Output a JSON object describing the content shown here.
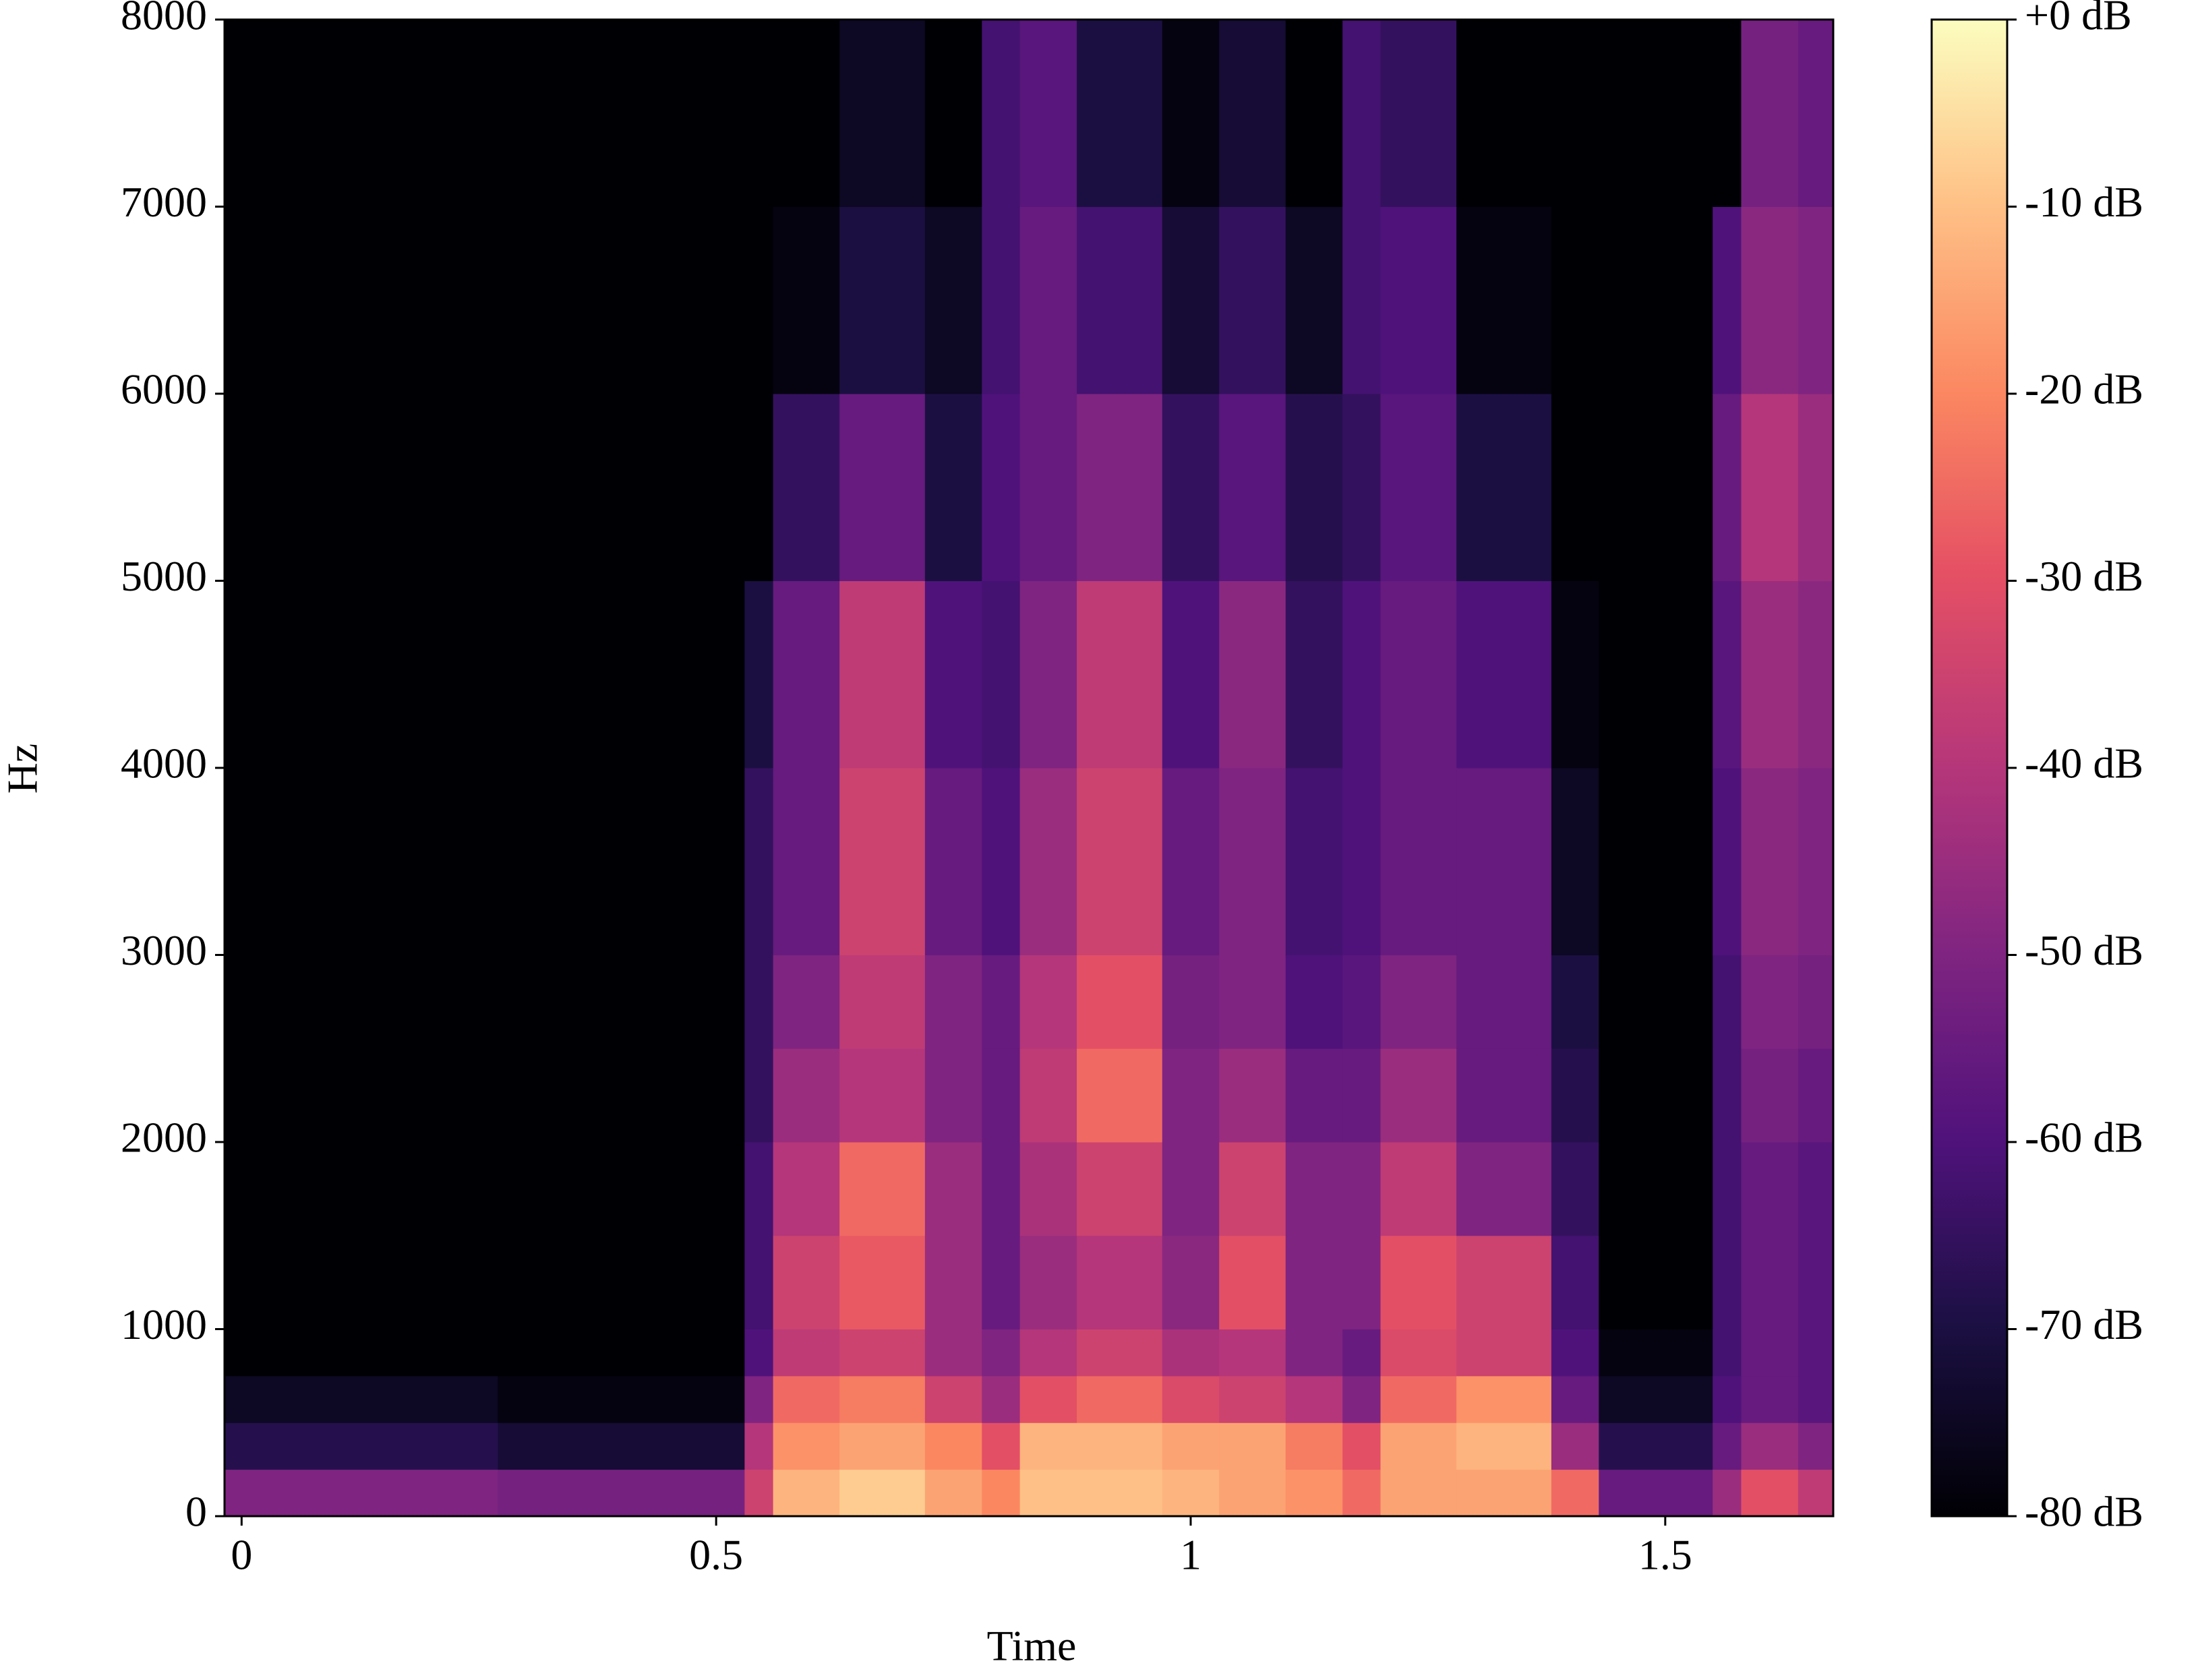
{
  "chart_data": {
    "type": "spectrogram",
    "xlabel": "Time",
    "ylabel": "Hz",
    "xlim": [
      -0.018,
      1.677
    ],
    "xticks": [
      0,
      0.5,
      1,
      1.5
    ],
    "ylim": [
      0,
      8000
    ],
    "yticks": [
      0,
      1000,
      2000,
      3000,
      4000,
      5000,
      6000,
      7000,
      8000
    ],
    "colormap": "magma",
    "clim": [
      -80,
      0
    ],
    "cticks": [
      {
        "value": 0,
        "label": "+0 dB"
      },
      {
        "value": -10,
        "label": "-10 dB"
      },
      {
        "value": -20,
        "label": "-20 dB"
      },
      {
        "value": -30,
        "label": "-30 dB"
      },
      {
        "value": -40,
        "label": "-40 dB"
      },
      {
        "value": -50,
        "label": "-50 dB"
      },
      {
        "value": -60,
        "label": "-60 dB"
      },
      {
        "value": -70,
        "label": "-70 dB"
      },
      {
        "value": -80,
        "label": "-80 dB"
      }
    ],
    "time_bins": [
      -0.018,
      0.27,
      0.53,
      0.56,
      0.63,
      0.72,
      0.78,
      0.82,
      0.88,
      0.97,
      1.03,
      1.1,
      1.16,
      1.2,
      1.28,
      1.38,
      1.43,
      1.55,
      1.58,
      1.64,
      1.677
    ],
    "freq_bins": [
      0,
      250,
      500,
      750,
      1000,
      1500,
      2000,
      2500,
      3000,
      4000,
      5000,
      6000,
      7000,
      8000
    ],
    "z": [
      [
        -50,
        -68,
        -75,
        -80,
        -80,
        -80,
        -80,
        -80,
        -80,
        -80,
        -80,
        -80,
        -80
      ],
      [
        -52,
        -72,
        -78,
        -80,
        -80,
        -80,
        -80,
        -80,
        -80,
        -80,
        -80,
        -80,
        -80
      ],
      [
        -35,
        -40,
        -50,
        -60,
        -62,
        -62,
        -65,
        -65,
        -65,
        -70,
        -80,
        -80,
        -80
      ],
      [
        -12,
        -18,
        -25,
        -38,
        -35,
        -40,
        -45,
        -50,
        -55,
        -55,
        -65,
        -78,
        -80
      ],
      [
        -8,
        -15,
        -22,
        -35,
        -28,
        -25,
        -40,
        -38,
        -35,
        -38,
        -55,
        -70,
        -75
      ],
      [
        -15,
        -20,
        -35,
        -45,
        -45,
        -45,
        -50,
        -50,
        -55,
        -60,
        -70,
        -75,
        -80
      ],
      [
        -20,
        -30,
        -45,
        -50,
        -55,
        -55,
        -55,
        -55,
        -60,
        -62,
        -60,
        -62,
        -62
      ],
      [
        -10,
        -12,
        -30,
        -40,
        -45,
        -42,
        -38,
        -40,
        -45,
        -50,
        -55,
        -55,
        -58
      ],
      [
        -10,
        -12,
        -25,
        -35,
        -40,
        -35,
        -25,
        -30,
        -35,
        -38,
        -50,
        -62,
        -70
      ],
      [
        -12,
        -15,
        -32,
        -42,
        -48,
        -50,
        -50,
        -52,
        -55,
        -60,
        -65,
        -72,
        -78
      ],
      [
        -15,
        -15,
        -35,
        -40,
        -30,
        -35,
        -45,
        -50,
        -50,
        -48,
        -58,
        -65,
        -72
      ],
      [
        -18,
        -22,
        -40,
        -50,
        -50,
        -50,
        -55,
        -60,
        -62,
        -65,
        -68,
        -75,
        -80
      ],
      [
        -25,
        -30,
        -50,
        -55,
        -50,
        -50,
        -55,
        -58,
        -60,
        -60,
        -65,
        -62,
        -62
      ],
      [
        -15,
        -15,
        -25,
        -32,
        -30,
        -38,
        -45,
        -50,
        -55,
        -55,
        -58,
        -60,
        -65
      ],
      [
        -15,
        -12,
        -18,
        -35,
        -35,
        -50,
        -55,
        -55,
        -55,
        -60,
        -70,
        -78,
        -80
      ],
      [
        -25,
        -45,
        -55,
        -60,
        -62,
        -65,
        -68,
        -70,
        -75,
        -78,
        -80,
        -80,
        -80
      ],
      [
        -55,
        -68,
        -75,
        -78,
        -80,
        -80,
        -80,
        -80,
        -80,
        -80,
        -80,
        -80,
        -80
      ],
      [
        -45,
        -55,
        -60,
        -62,
        -62,
        -62,
        -62,
        -62,
        -60,
        -58,
        -55,
        -60,
        -80
      ],
      [
        -30,
        -45,
        -55,
        -55,
        -55,
        -55,
        -52,
        -50,
        -48,
        -45,
        -40,
        -48,
        -52
      ],
      [
        -38,
        -50,
        -58,
        -58,
        -58,
        -58,
        -55,
        -52,
        -50,
        -48,
        -45,
        -50,
        -55
      ]
    ]
  }
}
